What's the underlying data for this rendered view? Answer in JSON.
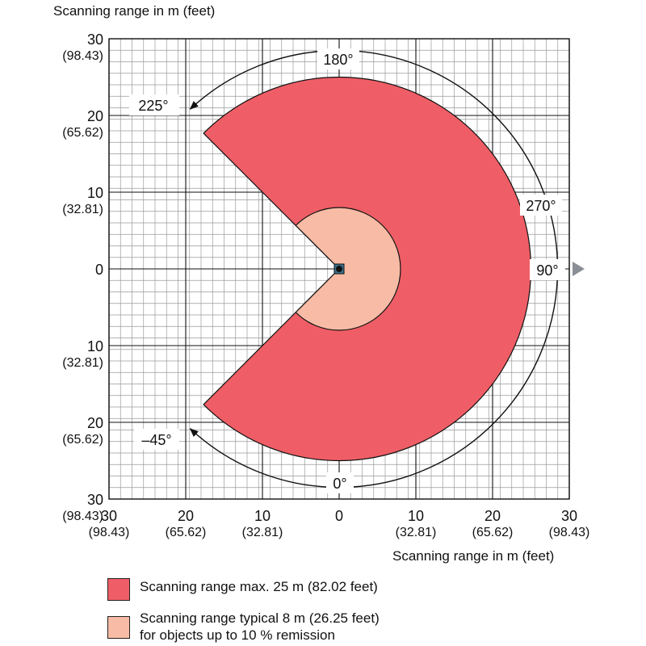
{
  "title_top": "Scanning range in m (feet)",
  "title_bottom": "Scanning range in m (feet)",
  "y_ticks": [
    {
      "value": 30,
      "meters": "30",
      "feet": "(98.43)"
    },
    {
      "value": 20,
      "meters": "20",
      "feet": "(65.62)"
    },
    {
      "value": 10,
      "meters": "10",
      "feet": "(32.81)"
    },
    {
      "value": 0,
      "meters": "0",
      "feet": ""
    },
    {
      "value": -10,
      "meters": "10",
      "feet": "(32.81)"
    },
    {
      "value": -20,
      "meters": "20",
      "feet": "(65.62)"
    },
    {
      "value": -30,
      "meters": "30",
      "feet": "(98.43)"
    }
  ],
  "x_ticks": [
    {
      "value": -30,
      "meters": "30",
      "feet": "(98.43)"
    },
    {
      "value": -20,
      "meters": "20",
      "feet": "(65.62)"
    },
    {
      "value": -10,
      "meters": "10",
      "feet": "(32.81)"
    },
    {
      "value": 0,
      "meters": "0",
      "feet": ""
    },
    {
      "value": 10,
      "meters": "10",
      "feet": "(32.81)"
    },
    {
      "value": 20,
      "meters": "20",
      "feet": "(65.62)"
    },
    {
      "value": 30,
      "meters": "30",
      "feet": "(98.43)"
    }
  ],
  "angle_labels": {
    "a180": "180°",
    "a225": "225°",
    "a270": "270°",
    "a90": "90°",
    "a0": "0°",
    "am45": "–45°"
  },
  "scan": {
    "max_range_m": 25,
    "typical_range_m": 8,
    "aperture_start_deg": -45,
    "aperture_end_deg": 225
  },
  "colors": {
    "max_range": "#ef5e66",
    "typical_range": "#f8bba5",
    "grid_fine": "#9a9a9a",
    "grid_major": "#111111",
    "arrow": "#8a8f96",
    "sensor_body": "#3a6f8a"
  },
  "legend": {
    "max_label": "Scanning range max. 25 m (82.02 feet)",
    "typical_line1": "Scanning range typical 8 m (26.25 feet)",
    "typical_line2": "for objects up to 10 % remission"
  }
}
